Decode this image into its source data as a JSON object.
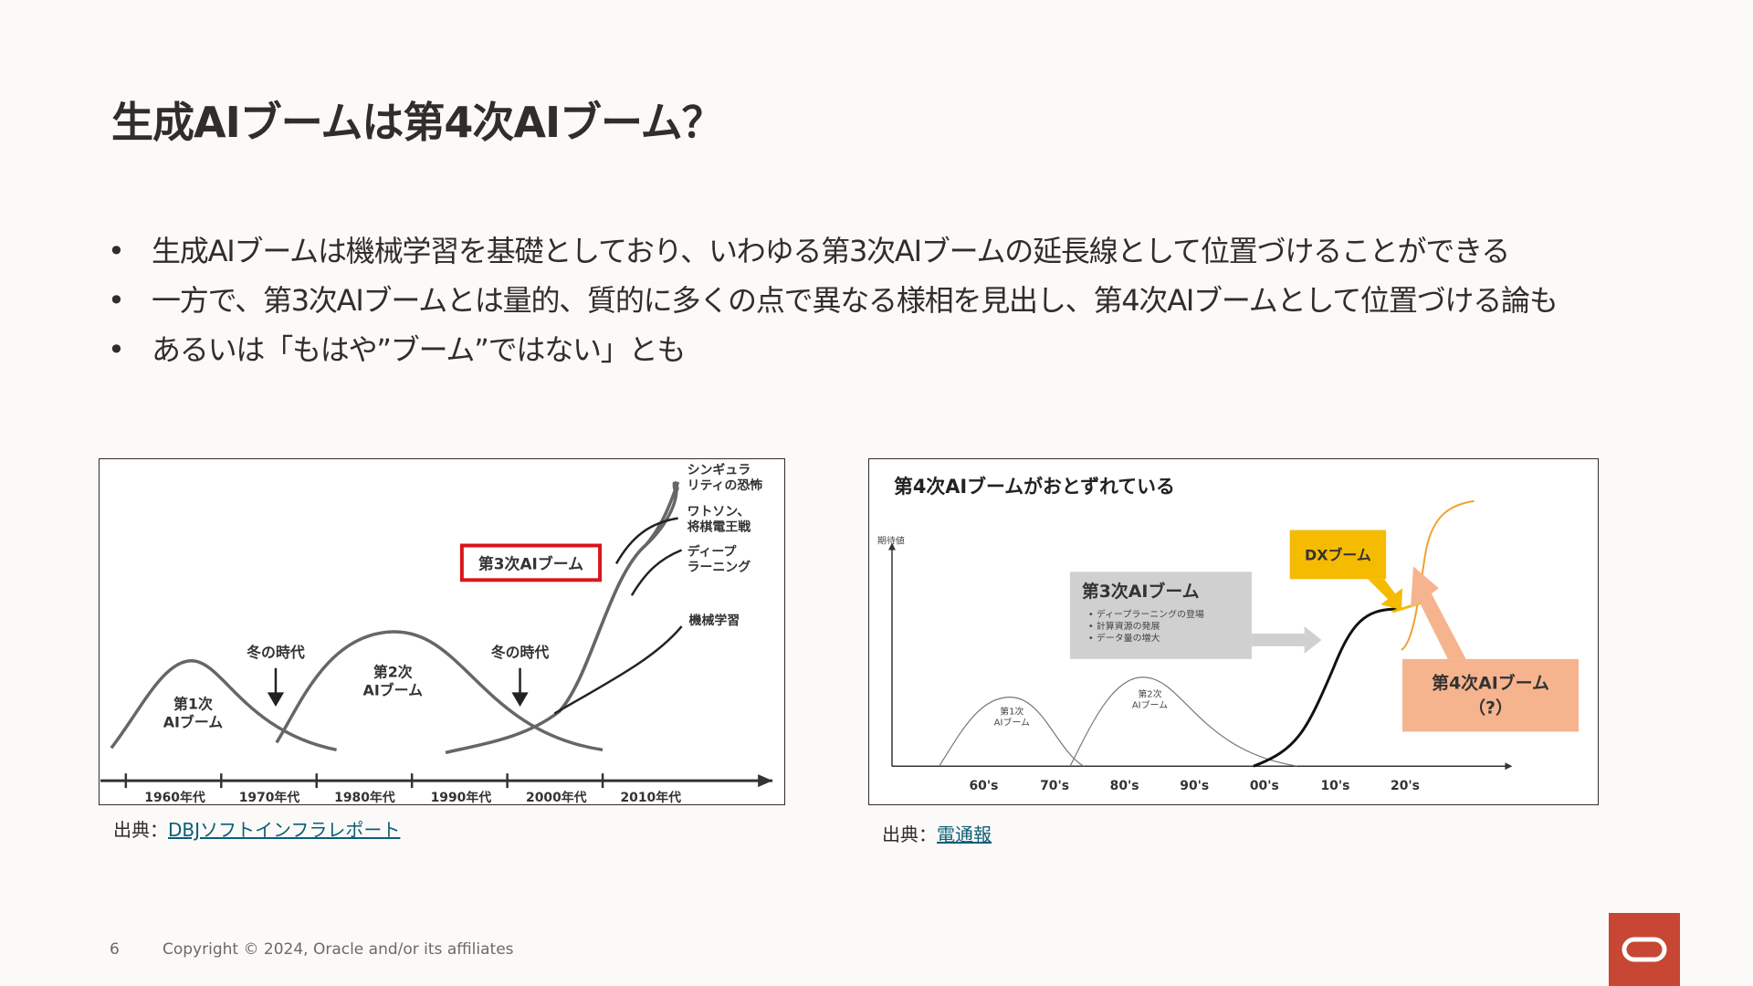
{
  "slide": {
    "title": "生成AIブームは第4次AIブーム？",
    "bullets": [
      "生成AIブームは機械学習を基礎としており、いわゆる第3次AIブームの延長線として位置づけることができる",
      "一方で、第3次AIブームとは量的、質的に多くの点で異なる様相を見出し、第4次AIブームとして位置づける論も",
      "あるいは「もはや”ブーム”ではない」とも"
    ],
    "page_number": "6",
    "copyright": "Copyright © 2024, Oracle and/or its affiliates"
  },
  "figure1": {
    "decades": [
      "1960年代",
      "1970年代",
      "1980年代",
      "1990年代",
      "2000年代",
      "2010年代"
    ],
    "boom1": [
      "第1次",
      "AIブーム"
    ],
    "boom2": [
      "第2次",
      "AIブーム"
    ],
    "winter1": "冬の時代",
    "winter2": "冬の時代",
    "boom3": "第3次AIブーム",
    "labels": {
      "singularity": [
        "シンギュラ",
        "リティの恐怖"
      ],
      "watson": [
        "ワトソン、",
        "将棋電王戦"
      ],
      "deep": [
        "ディープ",
        "ラーニング"
      ],
      "ml": "機械学習"
    },
    "source_prefix": "出典：",
    "source_link": "DBJソフトインフラレポート"
  },
  "figure2": {
    "title": "第4次AIブームがおとずれている",
    "ylabel": "期待値",
    "decades": [
      "60's",
      "70's",
      "80's",
      "90's",
      "00's",
      "10's",
      "20's"
    ],
    "boom1": [
      "第1次",
      "AIブーム"
    ],
    "boom2": [
      "第2次",
      "AIブーム"
    ],
    "boom3_title": "第3次AIブーム",
    "boom3_items": [
      "ディープラーニングの登場",
      "計算資源の発展",
      "データ量の増大"
    ],
    "dx": "DXブーム",
    "boom4": [
      "第4次AIブーム",
      "（?）"
    ],
    "source_prefix": "出典：",
    "source_link": "電通報",
    "colors": {
      "dx_box": "#F5BB00",
      "boom4_box": "#F6B48E",
      "boom3_box": "#D0D0D0",
      "orange_curve": "#F0A030"
    }
  }
}
